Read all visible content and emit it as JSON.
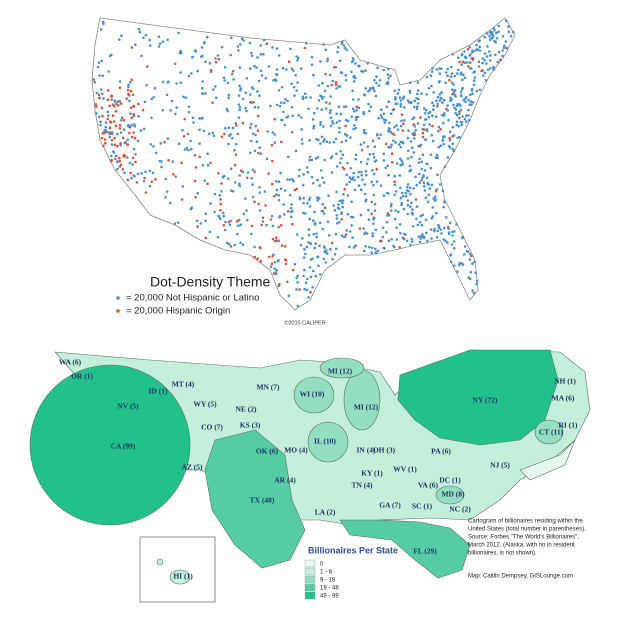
{
  "dot_density_map": {
    "legend_title": "Dot-Density Theme",
    "legend_items": [
      "= 20,000 Not Hispanic or Latino",
      "= 20,000 Hispanic Origin"
    ],
    "credit": "©2015 CALIPER"
  },
  "cartogram": {
    "states": [
      "WA (6)",
      "OR (1)",
      "ID (1)",
      "MT (4)",
      "NV (5)",
      "WY (5)",
      "CA (99)",
      "CO (7)",
      "NE (2)",
      "KS (3)",
      "AZ (5)",
      "OK (6)",
      "MO (4)",
      "TX (48)",
      "AR (4)",
      "LA (2)",
      "MN (7)",
      "WI (10)",
      "MI (12)",
      "MI (12)",
      "IL (10)",
      "IN (4)",
      "OH (3)",
      "KY (1)",
      "TN (4)",
      "WV (1)",
      "VA (6)",
      "DC (1)",
      "MD (8)",
      "NC (2)",
      "SC (1)",
      "GA (7)",
      "FL (29)",
      "PA (6)",
      "NY (72)",
      "NJ (5)",
      "CT (11)",
      "RI (1)",
      "MA (6)",
      "NH (1)",
      "HI (1)"
    ],
    "legend": {
      "title": "Billionaires Per State",
      "classes": [
        "0",
        "1 - 8",
        "9 - 18",
        "19 - 48",
        "49 - 99"
      ]
    },
    "caption": [
      "Cartogram of billionaires residing within the",
      "United States (total number in parentheses).",
      "Source: Forbes \"The World's Billionaires\",",
      "March 2012. (Alaska, with no in resident",
      "billionaires, is not shown)."
    ],
    "credit": "Map: Caitlin Dempsey, GISLounge.com"
  }
}
